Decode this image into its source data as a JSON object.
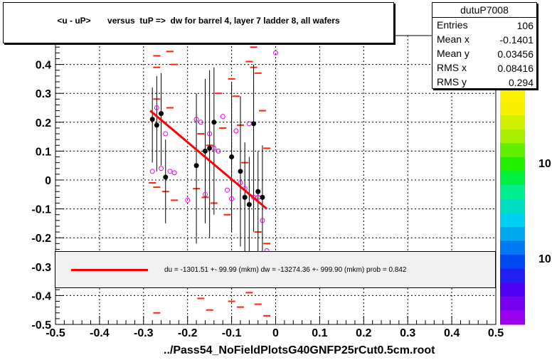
{
  "title": "<u - uP>       versus  tuP =>  dw for barrel 4, layer 7 ladder 8, all wafers",
  "stats": {
    "name": "dutuP7008",
    "rows": [
      {
        "label": "Entries",
        "value": "106"
      },
      {
        "label": "Mean x",
        "value": "-0.1401"
      },
      {
        "label": "Mean y",
        "value": "0.03456"
      },
      {
        "label": "RMS x",
        "value": "0.08416"
      },
      {
        "label": "RMS y",
        "value": "0.294"
      }
    ]
  },
  "fit_text": "du = -1301.51 +- 99.99 (mkm) dw = -13274.36 +- 999.90 (mkm) prob = 0.842",
  "footer": "../Pass54_NoFieldPlotsG40GNFP25rCut0.5cm.root",
  "palette_labels": [
    "10",
    "10"
  ],
  "colors": {
    "fit": "#ff0000",
    "profile": "#000000",
    "open": "#ee00ee",
    "dash": "#ff2200"
  },
  "chart_data": {
    "type": "scatter",
    "xlim": [
      -0.5,
      0.5
    ],
    "ylim": [
      -0.5,
      0.5
    ],
    "x_ticks": [
      "-0.5",
      "-0.4",
      "-0.3",
      "-0.2",
      "-0.1",
      "0",
      "0.1",
      "0.2",
      "0.3",
      "0.4",
      "0.5"
    ],
    "y_ticks": [
      "-0.5",
      "-0.4",
      "-0.3",
      "-0.2",
      "-0.1",
      "0",
      "0.1",
      "0.2",
      "0.3",
      "0.4",
      "0.5"
    ],
    "y_ticks_visible": [
      "-0.5",
      "-0.4",
      "-0.3",
      "-0.2",
      "-0.1",
      "0",
      "0.1",
      "0.2",
      "0.3",
      "0.4"
    ],
    "grid": true,
    "profile_points": [
      {
        "x": -0.28,
        "y": 0.21,
        "lo": 0.06,
        "hi": 0.32
      },
      {
        "x": -0.27,
        "y": 0.19,
        "lo": 0.03,
        "hi": 0.36
      },
      {
        "x": -0.26,
        "y": 0.23,
        "lo": 0.05,
        "hi": 0.37
      },
      {
        "x": -0.25,
        "y": 0.01,
        "lo": -0.15,
        "hi": 0.14
      },
      {
        "x": -0.18,
        "y": 0.05,
        "lo": -0.22,
        "hi": 0.3
      },
      {
        "x": -0.16,
        "y": 0.1,
        "lo": -0.15,
        "hi": 0.35
      },
      {
        "x": -0.15,
        "y": 0.11,
        "lo": -0.2,
        "hi": 0.38
      },
      {
        "x": -0.14,
        "y": 0.2,
        "lo": -0.12,
        "hi": 0.39
      },
      {
        "x": -0.1,
        "y": 0.08,
        "lo": -0.18,
        "hi": 0.34
      },
      {
        "x": -0.08,
        "y": 0.03,
        "lo": -0.23,
        "hi": 0.29
      },
      {
        "x": -0.07,
        "y": -0.06,
        "lo": -0.25,
        "hi": 0.13
      },
      {
        "x": -0.06,
        "y": -0.085,
        "lo": -0.25,
        "hi": 0.08
      },
      {
        "x": -0.05,
        "y": 0.195,
        "lo": -0.18,
        "hi": 0.4
      },
      {
        "x": -0.04,
        "y": -0.04,
        "lo": -0.25,
        "hi": 0.1
      },
      {
        "x": -0.03,
        "y": -0.06,
        "lo": -0.25,
        "hi": 0.12
      }
    ],
    "open_points": [
      {
        "x": -0.28,
        "y": 0.03
      },
      {
        "x": -0.27,
        "y": 0.25
      },
      {
        "x": -0.26,
        "y": 0.04
      },
      {
        "x": -0.25,
        "y": 0.16
      },
      {
        "x": -0.24,
        "y": 0.03
      },
      {
        "x": -0.23,
        "y": 0.025
      },
      {
        "x": -0.2,
        "y": -0.07
      },
      {
        "x": -0.18,
        "y": 0.21
      },
      {
        "x": -0.17,
        "y": 0.2
      },
      {
        "x": -0.16,
        "y": -0.05
      },
      {
        "x": -0.15,
        "y": 0.16
      },
      {
        "x": -0.14,
        "y": 0.11
      },
      {
        "x": -0.13,
        "y": 0.1
      },
      {
        "x": -0.12,
        "y": 0.22
      },
      {
        "x": -0.11,
        "y": -0.035
      },
      {
        "x": -0.1,
        "y": -0.065
      },
      {
        "x": -0.09,
        "y": 0.17
      },
      {
        "x": -0.08,
        "y": -0.01
      },
      {
        "x": -0.07,
        "y": -0.03
      },
      {
        "x": -0.06,
        "y": 0.195
      },
      {
        "x": -0.05,
        "y": -0.06
      },
      {
        "x": -0.04,
        "y": -0.06
      },
      {
        "x": -0.03,
        "y": -0.14
      },
      {
        "x": -0.02,
        "y": -0.245
      },
      {
        "x": 0.0,
        "y": 0.44
      }
    ],
    "dash_marks": [
      {
        "x": -0.27,
        "y": 0.43
      },
      {
        "x": -0.27,
        "y": 0.28
      },
      {
        "x": -0.27,
        "y": 0.39
      },
      {
        "x": -0.24,
        "y": 0.445
      },
      {
        "x": -0.24,
        "y": 0.25
      },
      {
        "x": -0.23,
        "y": 0.4
      },
      {
        "x": -0.28,
        "y": -0.01
      },
      {
        "x": -0.27,
        "y": -0.025
      },
      {
        "x": -0.25,
        "y": -0.04
      },
      {
        "x": -0.23,
        "y": -0.07
      },
      {
        "x": -0.18,
        "y": -0.03
      },
      {
        "x": -0.17,
        "y": 0.16
      },
      {
        "x": -0.16,
        "y": -0.06
      },
      {
        "x": -0.15,
        "y": 0.12
      },
      {
        "x": -0.14,
        "y": -0.08
      },
      {
        "x": -0.13,
        "y": 0.3
      },
      {
        "x": -0.12,
        "y": 0.18
      },
      {
        "x": -0.11,
        "y": -0.12
      },
      {
        "x": -0.1,
        "y": 0.35
      },
      {
        "x": -0.09,
        "y": 0.29
      },
      {
        "x": -0.08,
        "y": 0.19
      },
      {
        "x": -0.07,
        "y": 0.06
      },
      {
        "x": -0.06,
        "y": 0.41
      },
      {
        "x": -0.05,
        "y": 0.39
      },
      {
        "x": -0.04,
        "y": 0.37
      },
      {
        "x": -0.03,
        "y": 0.24
      },
      {
        "x": -0.02,
        "y": 0.11
      },
      {
        "x": -0.04,
        "y": -0.18
      },
      {
        "x": -0.02,
        "y": -0.22
      },
      {
        "x": -0.05,
        "y": 0.46
      },
      {
        "x": -0.17,
        "y": -0.41
      },
      {
        "x": -0.15,
        "y": -0.45
      },
      {
        "x": -0.1,
        "y": -0.42
      },
      {
        "x": -0.08,
        "y": -0.44
      },
      {
        "x": -0.06,
        "y": -0.39
      },
      {
        "x": -0.04,
        "y": -0.43
      },
      {
        "x": -0.02,
        "y": -0.47
      },
      {
        "x": -0.27,
        "y": -0.46
      },
      {
        "x": -0.09,
        "y": -0.37
      }
    ],
    "fit": {
      "x0": -0.285,
      "y0": 0.24,
      "x1": -0.02,
      "y1": -0.1
    }
  }
}
